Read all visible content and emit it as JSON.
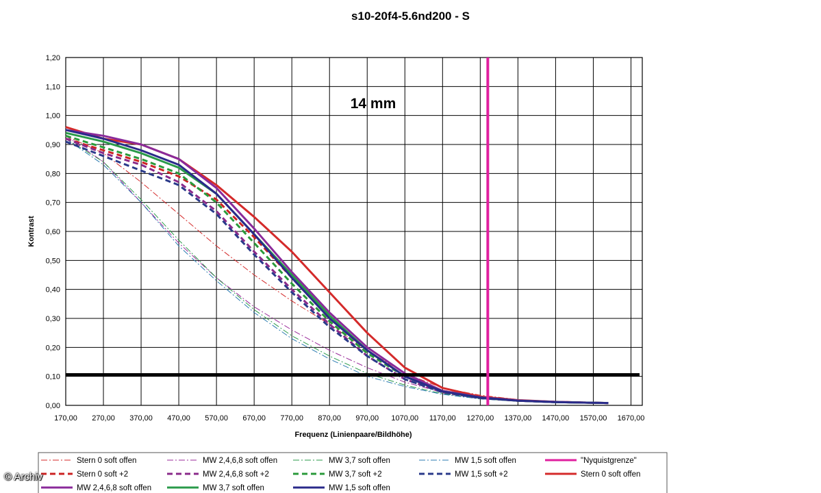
{
  "chart_data": {
    "type": "line",
    "title": "s10-20f4-5.6nd200 - S",
    "annotation": "14 mm",
    "xlabel": "Frequenz (Linienpaare/Bildhöhe)",
    "ylabel": "Kontrast",
    "xlim": [
      170,
      1700
    ],
    "ylim": [
      0,
      1.2
    ],
    "xticks": [
      170,
      270,
      370,
      470,
      570,
      670,
      770,
      870,
      970,
      1070,
      1170,
      1270,
      1370,
      1470,
      1570,
      1670
    ],
    "xtick_labels": [
      "170,00",
      "270,00",
      "370,00",
      "470,00",
      "570,00",
      "670,00",
      "770,00",
      "870,00",
      "970,00",
      "1070,00",
      "1170,00",
      "1270,00",
      "1370,00",
      "1470,00",
      "1570,00",
      "1670,00"
    ],
    "yticks": [
      0,
      0.1,
      0.2,
      0.3,
      0.4,
      0.5,
      0.6,
      0.7,
      0.8,
      0.9,
      1.0,
      1.1,
      1.2
    ],
    "ytick_labels": [
      "0,00",
      "0,10",
      "0,20",
      "0,30",
      "0,40",
      "0,50",
      "0,60",
      "0,70",
      "0,80",
      "0,90",
      "1,00",
      "1,10",
      "1,20"
    ],
    "grid": true,
    "legend_position": "bottom",
    "threshold_line": {
      "y": 0.105,
      "color": "#000000"
    },
    "nyquist_line": {
      "x": 1290,
      "color": "#e0209f"
    },
    "series": [
      {
        "name": "Stern 0 soft offen",
        "color": "#d42a2a",
        "style": "dashdot",
        "width": 1,
        "x": [
          170,
          270,
          370,
          470,
          570,
          670,
          770,
          870,
          970,
          1070,
          1170,
          1270,
          1370,
          1470,
          1570,
          1610
        ],
        "y": [
          0.93,
          0.87,
          0.77,
          0.66,
          0.55,
          0.45,
          0.36,
          0.28,
          0.19,
          0.11,
          0.06,
          0.035,
          0.02,
          0.012,
          0.009,
          0.008
        ]
      },
      {
        "name": "MW 2,4,6,8 soft offen",
        "color": "#9a2a9a",
        "style": "dashdot",
        "width": 1,
        "x": [
          170,
          270,
          370,
          470,
          570,
          670,
          770,
          870,
          970,
          1070,
          1170,
          1270,
          1370,
          1470,
          1570,
          1610
        ],
        "y": [
          0.93,
          0.84,
          0.7,
          0.56,
          0.44,
          0.34,
          0.26,
          0.19,
          0.13,
          0.08,
          0.045,
          0.025,
          0.015,
          0.01,
          0.008,
          0.007
        ]
      },
      {
        "name": "MW 3,7 soft offen",
        "color": "#2a9a4a",
        "style": "dashdot",
        "width": 1,
        "x": [
          170,
          270,
          370,
          470,
          570,
          670,
          770,
          870,
          970,
          1070,
          1170,
          1270,
          1370,
          1470,
          1570,
          1610
        ],
        "y": [
          0.92,
          0.84,
          0.71,
          0.57,
          0.44,
          0.33,
          0.24,
          0.17,
          0.11,
          0.07,
          0.04,
          0.024,
          0.015,
          0.01,
          0.008,
          0.007
        ]
      },
      {
        "name": "MW 1,5 soft offen",
        "color": "#2a7ab0",
        "style": "dashdot",
        "width": 1,
        "x": [
          170,
          270,
          370,
          470,
          570,
          670,
          770,
          870,
          970,
          1070,
          1170,
          1270,
          1370,
          1470,
          1570,
          1610
        ],
        "y": [
          0.92,
          0.83,
          0.7,
          0.55,
          0.43,
          0.32,
          0.23,
          0.16,
          0.1,
          0.065,
          0.038,
          0.022,
          0.014,
          0.01,
          0.008,
          0.007
        ]
      },
      {
        "name": "\"Nyquistgrenze\"",
        "color": "#e0209f",
        "style": "solid",
        "width": 3,
        "legend_only": true
      },
      {
        "name": "Stern 0 soft +2",
        "color": "#cc2222",
        "style": "dashed",
        "width": 3,
        "x": [
          170,
          270,
          370,
          470,
          570,
          670,
          770,
          870,
          970,
          1070,
          1170,
          1270,
          1370,
          1470,
          1570,
          1610
        ],
        "y": [
          0.92,
          0.88,
          0.84,
          0.79,
          0.71,
          0.58,
          0.44,
          0.3,
          0.19,
          0.1,
          0.05,
          0.028,
          0.017,
          0.012,
          0.009,
          0.008
        ]
      },
      {
        "name": "MW 2,4,6,8 soft +2",
        "color": "#8a2a8a",
        "style": "dashed",
        "width": 3,
        "x": [
          170,
          270,
          370,
          470,
          570,
          670,
          770,
          870,
          970,
          1070,
          1170,
          1270,
          1370,
          1470,
          1570,
          1610
        ],
        "y": [
          0.92,
          0.87,
          0.83,
          0.77,
          0.67,
          0.53,
          0.4,
          0.28,
          0.17,
          0.09,
          0.045,
          0.025,
          0.016,
          0.011,
          0.009,
          0.008
        ]
      },
      {
        "name": "MW 3,7 soft +2",
        "color": "#2a9a3a",
        "style": "dashed",
        "width": 3,
        "x": [
          170,
          270,
          370,
          470,
          570,
          670,
          770,
          870,
          970,
          1070,
          1170,
          1270,
          1370,
          1470,
          1570,
          1610
        ],
        "y": [
          0.93,
          0.89,
          0.85,
          0.8,
          0.7,
          0.56,
          0.42,
          0.29,
          0.18,
          0.1,
          0.048,
          0.026,
          0.016,
          0.011,
          0.009,
          0.008
        ]
      },
      {
        "name": "MW 1,5 soft +2",
        "color": "#2a3a8a",
        "style": "dashed",
        "width": 3,
        "x": [
          170,
          270,
          370,
          470,
          570,
          670,
          770,
          870,
          970,
          1070,
          1170,
          1270,
          1370,
          1470,
          1570,
          1610
        ],
        "y": [
          0.91,
          0.86,
          0.81,
          0.76,
          0.66,
          0.52,
          0.39,
          0.27,
          0.17,
          0.09,
          0.045,
          0.025,
          0.016,
          0.011,
          0.009,
          0.008
        ]
      },
      {
        "name": "Stern 0 soft offen",
        "color": "#d42a2a",
        "style": "solid",
        "width": 3,
        "x": [
          170,
          270,
          370,
          470,
          570,
          670,
          770,
          870,
          970,
          1070,
          1170,
          1270,
          1370,
          1470,
          1570,
          1610
        ],
        "y": [
          0.96,
          0.92,
          0.9,
          0.85,
          0.76,
          0.65,
          0.53,
          0.39,
          0.25,
          0.13,
          0.06,
          0.03,
          0.018,
          0.012,
          0.009,
          0.008
        ]
      },
      {
        "name": "MW 2,4,6,8 soft offen",
        "color": "#8a2a9a",
        "style": "solid",
        "width": 3,
        "x": [
          170,
          270,
          370,
          470,
          570,
          670,
          770,
          870,
          970,
          1070,
          1170,
          1270,
          1370,
          1470,
          1570,
          1610
        ],
        "y": [
          0.95,
          0.93,
          0.9,
          0.85,
          0.75,
          0.61,
          0.46,
          0.32,
          0.2,
          0.11,
          0.05,
          0.028,
          0.017,
          0.012,
          0.009,
          0.008
        ]
      },
      {
        "name": "MW 3,7 soft offen",
        "color": "#2a9a4a",
        "style": "solid",
        "width": 3,
        "x": [
          170,
          270,
          370,
          470,
          570,
          670,
          770,
          870,
          970,
          1070,
          1170,
          1270,
          1370,
          1470,
          1570,
          1610
        ],
        "y": [
          0.94,
          0.91,
          0.87,
          0.82,
          0.73,
          0.59,
          0.45,
          0.31,
          0.19,
          0.1,
          0.048,
          0.027,
          0.016,
          0.011,
          0.009,
          0.008
        ]
      },
      {
        "name": "MW 1,5 soft offen",
        "color": "#2a2a8a",
        "style": "solid",
        "width": 3,
        "x": [
          170,
          270,
          370,
          470,
          570,
          670,
          770,
          870,
          970,
          1070,
          1170,
          1270,
          1370,
          1470,
          1570,
          1610
        ],
        "y": [
          0.95,
          0.92,
          0.88,
          0.83,
          0.73,
          0.59,
          0.44,
          0.3,
          0.19,
          0.1,
          0.048,
          0.027,
          0.016,
          0.011,
          0.009,
          0.008
        ]
      }
    ]
  },
  "watermark": "© Archiv"
}
